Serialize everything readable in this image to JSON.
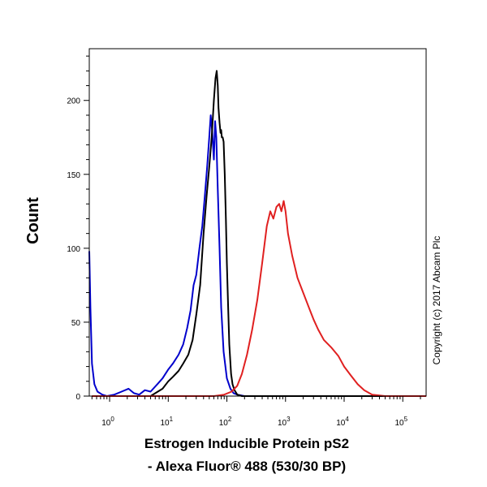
{
  "chart_data": {
    "type": "line",
    "xlabel_line1": "Estrogen Inducible Protein pS2",
    "xlabel_line2": "- Alexa Fluor® 488 (530/30 BP)",
    "ylabel": "Count",
    "copyright": "Copyright (c) 2017 Abcam Plc",
    "x_scale": "log",
    "xlim": [
      0.45,
      250000
    ],
    "ylim": [
      0,
      235
    ],
    "x_ticks": [
      {
        "value": 1,
        "base": "10",
        "exp": "0"
      },
      {
        "value": 10,
        "base": "10",
        "exp": "1"
      },
      {
        "value": 100,
        "base": "10",
        "exp": "2"
      },
      {
        "value": 1000,
        "base": "10",
        "exp": "3"
      },
      {
        "value": 10000,
        "base": "10",
        "exp": "4"
      },
      {
        "value": 100000,
        "base": "10",
        "exp": "5"
      }
    ],
    "y_ticks": [
      {
        "value": 0,
        "label": "0"
      },
      {
        "value": 50,
        "label": "50"
      },
      {
        "value": 100,
        "label": "100"
      },
      {
        "value": 150,
        "label": "150"
      },
      {
        "value": 200,
        "label": "200"
      }
    ],
    "grid": false,
    "legend": "none",
    "series": [
      {
        "color": "#0000cc",
        "x": [
          0.45,
          0.47,
          0.5,
          0.55,
          0.62,
          0.75,
          0.9,
          1.2,
          1.6,
          2.1,
          2.6,
          3.2,
          4,
          5,
          6.5,
          8,
          10,
          12,
          15,
          18,
          21,
          24,
          27,
          30,
          34,
          38,
          42,
          46,
          50,
          53,
          56,
          60,
          63,
          66,
          70,
          75,
          80,
          88,
          100,
          115,
          130,
          150,
          200,
          300,
          500,
          1000,
          10000,
          100000,
          250000
        ],
        "y": [
          98,
          60,
          22,
          8,
          3,
          1,
          0,
          1,
          3,
          5,
          2,
          1,
          4,
          3,
          8,
          12,
          18,
          22,
          28,
          35,
          46,
          58,
          75,
          82,
          100,
          115,
          135,
          155,
          175,
          190,
          180,
          160,
          186,
          175,
          140,
          100,
          60,
          30,
          12,
          5,
          2,
          1,
          0,
          0,
          0,
          0,
          0,
          0,
          0
        ]
      },
      {
        "color": "#000000",
        "x": [
          0.5,
          1,
          2,
          3,
          5,
          8,
          10,
          12,
          15,
          18,
          22,
          26,
          30,
          35,
          40,
          45,
          50,
          55,
          60,
          64,
          67,
          70,
          72,
          75,
          78,
          80,
          82,
          85,
          88,
          92,
          96,
          100,
          105,
          110,
          118,
          125,
          135,
          150,
          180,
          300,
          1000,
          10000,
          250000
        ],
        "y": [
          0,
          0,
          0,
          0,
          0,
          5,
          10,
          13,
          17,
          22,
          28,
          38,
          55,
          75,
          110,
          135,
          155,
          175,
          200,
          215,
          220,
          210,
          195,
          185,
          178,
          180,
          175,
          175,
          172,
          150,
          120,
          90,
          60,
          35,
          15,
          8,
          4,
          1,
          0,
          0,
          0,
          0,
          0
        ]
      },
      {
        "color": "#e02020",
        "x": [
          0.5,
          10,
          60,
          90,
          120,
          150,
          180,
          220,
          270,
          330,
          400,
          480,
          550,
          620,
          700,
          780,
          850,
          930,
          1000,
          1100,
          1300,
          1600,
          2000,
          2500,
          3000,
          3600,
          4500,
          6000,
          8000,
          10000,
          13000,
          17000,
          22000,
          30000,
          50000,
          100000,
          250000
        ],
        "y": [
          0,
          0,
          0,
          1,
          3,
          7,
          15,
          28,
          45,
          65,
          90,
          115,
          125,
          120,
          128,
          130,
          125,
          132,
          125,
          110,
          95,
          80,
          70,
          60,
          52,
          45,
          38,
          33,
          27,
          20,
          14,
          8,
          4,
          1,
          0,
          0,
          0
        ]
      }
    ]
  }
}
